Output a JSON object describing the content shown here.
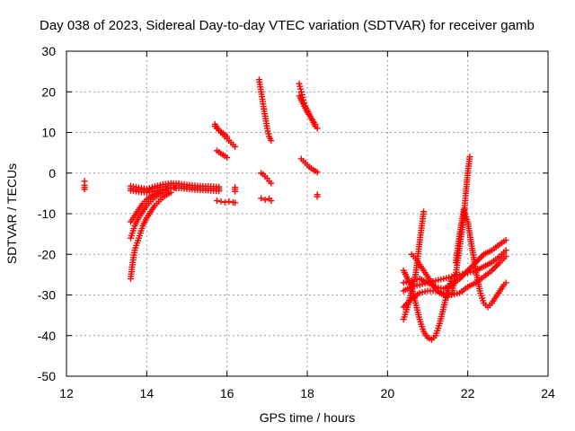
{
  "chart_data": {
    "type": "scatter",
    "title": "Day 038 of 2023, Sidereal Day-to-day VTEC variation (SDTVAR) for receiver gamb",
    "xlabel": "GPS time / hours",
    "ylabel": "SDTVAR / TECUs",
    "xlim": [
      12,
      24
    ],
    "ylim": [
      -50,
      30
    ],
    "xticks": [
      "12",
      "14",
      "16",
      "18",
      "20",
      "22",
      "24"
    ],
    "yticks": [
      "30",
      "20",
      "10",
      "0",
      "-10",
      "-20",
      "-30",
      "-40",
      "-50"
    ],
    "grid": true,
    "marker": "+",
    "colors": {
      "series": "#ff0000"
    },
    "segments": [
      {
        "x": [
          12.45,
          12.45,
          12.45,
          12.45
        ],
        "y": [
          -2,
          -3,
          -3.5,
          -4
        ]
      },
      {
        "x": [
          13.6,
          13.65,
          13.7,
          13.8,
          13.9,
          14.0,
          14.1,
          14.2,
          14.3,
          14.4,
          14.5,
          14.6
        ],
        "y": [
          -26,
          -22,
          -19,
          -16,
          -13,
          -11,
          -9.5,
          -8,
          -7,
          -6,
          -5.3,
          -4.8
        ]
      },
      {
        "x": [
          13.6,
          13.7,
          13.8,
          13.9,
          14.0,
          14.1,
          14.2,
          14.3,
          14.4,
          14.5
        ],
        "y": [
          -16,
          -13,
          -11,
          -9.5,
          -8,
          -7,
          -6,
          -5.3,
          -4.8,
          -4.4
        ]
      },
      {
        "x": [
          13.6,
          13.7,
          13.8,
          13.9,
          14.0,
          14.1,
          14.2,
          14.3,
          14.4,
          14.5,
          14.6,
          14.7
        ],
        "y": [
          -12,
          -10.5,
          -9,
          -7.5,
          -6.5,
          -5.8,
          -5.2,
          -4.7,
          -4.3,
          -4.0,
          -3.8,
          -3.6
        ]
      },
      {
        "x": [
          13.6,
          13.8,
          14.0,
          14.2,
          14.4,
          14.6,
          14.8,
          15.0,
          15.2,
          15.4,
          15.6,
          15.8
        ],
        "y": [
          -3.2,
          -3.6,
          -3.9,
          -3.3,
          -2.8,
          -2.5,
          -2.6,
          -2.9,
          -3.1,
          -3.2,
          -3.3,
          -3.4
        ]
      },
      {
        "x": [
          13.6,
          13.8,
          14.0,
          14.2,
          14.4,
          14.6,
          14.8,
          15.0,
          15.2,
          15.4,
          15.6,
          15.8
        ],
        "y": [
          -4.3,
          -4.6,
          -4.8,
          -4.4,
          -4.0,
          -3.6,
          -3.7,
          -3.9,
          -4.1,
          -4.2,
          -4.3,
          -4.4
        ]
      },
      {
        "x": [
          13.6,
          13.8,
          14.0,
          14.2,
          14.4,
          14.6,
          14.8,
          15.0,
          15.2,
          15.4,
          15.6,
          15.8
        ],
        "y": [
          -3.8,
          -4.1,
          -4.3,
          -3.8,
          -3.4,
          -3.0,
          -3.1,
          -3.4,
          -3.6,
          -3.7,
          -3.8,
          -3.9
        ]
      },
      {
        "x": [
          15.7,
          15.8,
          15.9,
          16.0,
          16.1,
          16.2
        ],
        "y": [
          12,
          10.5,
          9.5,
          8.5,
          7.5,
          6.5
        ]
      },
      {
        "x": [
          15.7,
          15.8,
          15.9,
          16.0
        ],
        "y": [
          11.5,
          10.5,
          9.8,
          9.0
        ]
      },
      {
        "x": [
          15.75,
          15.85,
          15.95,
          16.0
        ],
        "y": [
          5.5,
          4.8,
          4.2,
          3.8
        ]
      },
      {
        "x": [
          15.75,
          15.85,
          15.95,
          16.05,
          16.15,
          16.2
        ],
        "y": [
          -6.8,
          -7.0,
          -7.2,
          -7.0,
          -7.2,
          -7.3
        ]
      },
      {
        "x": [
          16.2,
          16.2,
          16.2
        ],
        "y": [
          -3.5,
          -4.0,
          -4.5
        ]
      },
      {
        "x": [
          16.8,
          16.85,
          16.9,
          16.95,
          17.0,
          17.05,
          17.1
        ],
        "y": [
          23,
          20,
          17,
          14,
          11,
          9,
          8
        ]
      },
      {
        "x": [
          16.85,
          16.9,
          16.95,
          17.0,
          17.05,
          17.1
        ],
        "y": [
          0,
          -0.3,
          -0.8,
          -1.3,
          -2,
          -2.5
        ]
      },
      {
        "x": [
          16.85,
          16.95,
          17.05,
          17.1
        ],
        "y": [
          -6.2,
          -6.6,
          -6.3,
          -6.8
        ]
      },
      {
        "x": [
          17.8,
          17.85,
          17.9,
          17.95,
          18.0,
          18.05,
          18.1,
          18.15,
          18.2,
          18.25
        ],
        "y": [
          22,
          20,
          18,
          16.5,
          15.5,
          14.5,
          13.5,
          12.5,
          11.5,
          11
        ]
      },
      {
        "x": [
          17.8,
          17.9,
          18.0,
          18.1,
          18.2
        ],
        "y": [
          19,
          17,
          15,
          13.5,
          12
        ]
      },
      {
        "x": [
          17.85,
          17.95,
          18.05,
          18.15,
          18.25
        ],
        "y": [
          3.5,
          2.5,
          1.5,
          0.8,
          0.2
        ]
      },
      {
        "x": [
          18.25,
          18.25
        ],
        "y": [
          -5.3,
          -5.8
        ]
      },
      {
        "x": [
          20.4,
          20.5,
          20.6,
          20.7,
          20.8,
          20.9
        ],
        "y": [
          -36,
          -33,
          -29,
          -25,
          -17,
          -9.5
        ]
      },
      {
        "x": [
          20.4,
          20.5,
          20.6,
          20.7,
          20.8,
          20.9,
          21.0,
          21.1,
          21.2,
          21.3,
          21.4,
          21.5,
          21.6
        ],
        "y": [
          -24,
          -26,
          -28,
          -32,
          -36,
          -39,
          -40.5,
          -41,
          -40,
          -37,
          -33,
          -29,
          -26
        ]
      },
      {
        "x": [
          20.4,
          20.6,
          20.8,
          21.0,
          21.2,
          21.4,
          21.6,
          21.8,
          22.0,
          22.2,
          22.4,
          22.6,
          22.8,
          22.95
        ],
        "y": [
          -29,
          -28,
          -27.5,
          -27,
          -26.5,
          -26,
          -25.5,
          -25,
          -24.5,
          -24,
          -23,
          -22,
          -20.5,
          -19
        ]
      },
      {
        "x": [
          20.4,
          20.6,
          20.8,
          21.0,
          21.2,
          21.4,
          21.6,
          21.8,
          22.0,
          22.2,
          22.4,
          22.6,
          22.8,
          22.95
        ],
        "y": [
          -27,
          -26.5,
          -26,
          -27,
          -28,
          -28.5,
          -27.5,
          -26,
          -24,
          -22,
          -20,
          -19,
          -17.5,
          -16.5
        ]
      },
      {
        "x": [
          20.4,
          20.6,
          20.8,
          21.0,
          21.2,
          21.4,
          21.6,
          21.8,
          22.0,
          22.2,
          22.4,
          22.6,
          22.8,
          22.95
        ],
        "y": [
          -33,
          -31,
          -29.5,
          -29,
          -29,
          -29.5,
          -30,
          -29.5,
          -28,
          -27,
          -25.5,
          -24,
          -22,
          -20.5
        ]
      },
      {
        "x": [
          20.6,
          20.7,
          20.8,
          20.9,
          21.0,
          21.1,
          21.2,
          21.3,
          21.4,
          21.5
        ],
        "y": [
          -20,
          -21,
          -22.5,
          -24,
          -25.5,
          -27,
          -28.5,
          -29.5,
          -30,
          -30.5
        ]
      },
      {
        "x": [
          21.6,
          21.7,
          21.8,
          21.9,
          21.95,
          22.0,
          22.05
        ],
        "y": [
          -30,
          -25,
          -18,
          -11,
          -5,
          0,
          4
        ]
      },
      {
        "x": [
          21.7,
          21.8,
          21.9,
          22.0,
          22.1,
          22.2,
          22.3,
          22.4,
          22.5,
          22.6,
          22.7,
          22.8,
          22.9,
          22.95
        ],
        "y": [
          -22,
          -15,
          -9,
          -12,
          -18,
          -24,
          -29,
          -32,
          -33,
          -32,
          -30.5,
          -29,
          -27.5,
          -27
        ]
      }
    ]
  }
}
